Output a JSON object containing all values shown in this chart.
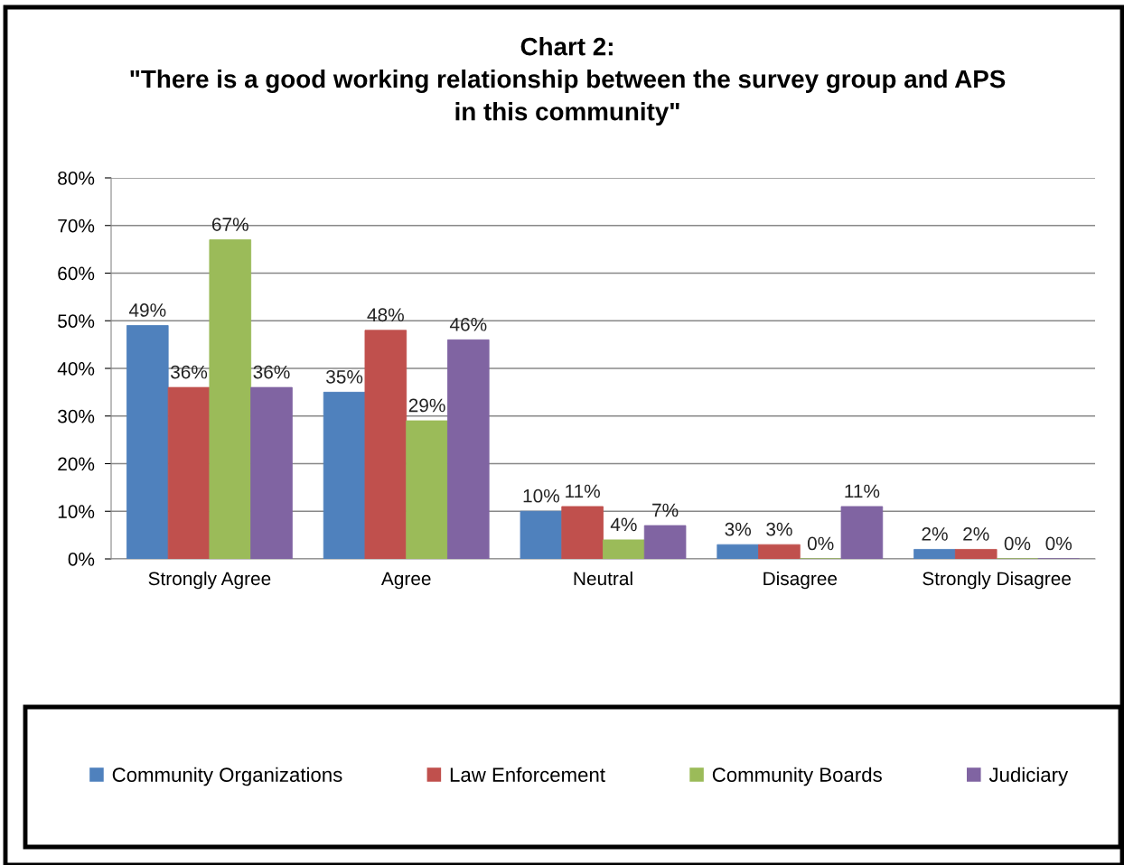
{
  "chart_data": {
    "type": "bar",
    "title": "Chart 2:\n\"There is a good working relationship between the survey group and APS\nin this community\"",
    "categories": [
      "Strongly Agree",
      "Agree",
      "Neutral",
      "Disagree",
      "Strongly Disagree"
    ],
    "series": [
      {
        "name": "Community Organizations",
        "color": "#4f81bd",
        "values": [
          49,
          35,
          10,
          3,
          2
        ],
        "value_labels": [
          "49%",
          "35%",
          "10%",
          "3%",
          "2%"
        ]
      },
      {
        "name": "Law Enforcement",
        "color": "#c0504d",
        "values": [
          36,
          48,
          11,
          3,
          2
        ],
        "value_labels": [
          "36%",
          "48%",
          "11%",
          "3%",
          "2%"
        ]
      },
      {
        "name": "Community Boards",
        "color": "#9bbb59",
        "values": [
          67,
          29,
          4,
          0,
          0
        ],
        "value_labels": [
          "67%",
          "29%",
          "4%",
          "0%",
          "0%"
        ]
      },
      {
        "name": "Judiciary",
        "color": "#8064a2",
        "values": [
          36,
          46,
          7,
          11,
          0
        ],
        "value_labels": [
          "36%",
          "46%",
          "7%",
          "11%",
          "0%"
        ]
      }
    ],
    "ylim": [
      0,
      80
    ],
    "yticks": [
      {
        "value": 0,
        "label": "0%"
      },
      {
        "value": 10,
        "label": "10%"
      },
      {
        "value": 20,
        "label": "20%"
      },
      {
        "value": 30,
        "label": "30%"
      },
      {
        "value": 40,
        "label": "40%"
      },
      {
        "value": 50,
        "label": "50%"
      },
      {
        "value": 60,
        "label": "60%"
      },
      {
        "value": 70,
        "label": "70%"
      },
      {
        "value": 80,
        "label": "80%"
      }
    ],
    "grid": "y",
    "legend": "bottom"
  }
}
